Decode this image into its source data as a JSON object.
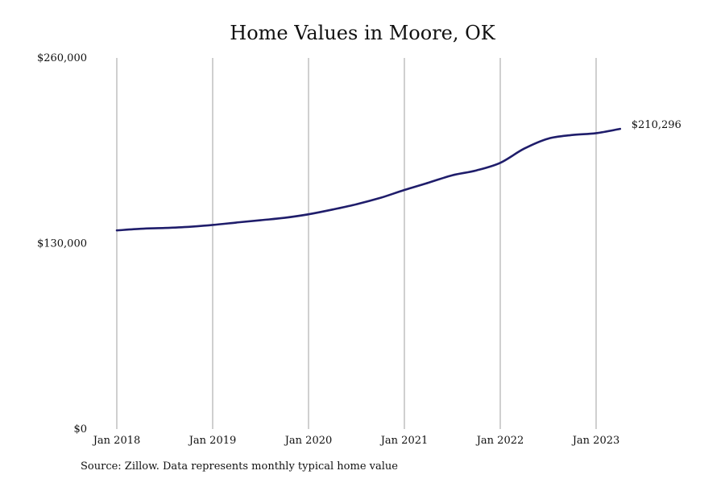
{
  "chart_data": {
    "type": "line",
    "title": "Home Values in Moore, OK",
    "xlabel": "",
    "ylabel": "",
    "ylim": [
      0,
      260000
    ],
    "y_ticks": [
      0,
      130000,
      260000
    ],
    "y_tick_labels": [
      "$0",
      "$130,000",
      "$260,000"
    ],
    "x_ticks": [
      "2018-01",
      "2019-01",
      "2020-01",
      "2021-01",
      "2022-01",
      "2023-01"
    ],
    "x_tick_labels": [
      "Jan 2018",
      "Jan 2019",
      "Jan 2020",
      "Jan 2021",
      "Jan 2022",
      "Jan 2023"
    ],
    "grid": "vertical",
    "legend": "none",
    "line_color": "#1f1d6b",
    "grid_color": "#888888",
    "end_label": "$210,296",
    "series": [
      {
        "x": [
          "2018-01",
          "2018-04",
          "2018-07",
          "2018-10",
          "2019-01",
          "2019-04",
          "2019-07",
          "2019-10",
          "2020-01",
          "2020-04",
          "2020-07",
          "2020-10",
          "2021-01",
          "2021-04",
          "2021-07",
          "2021-10",
          "2022-01",
          "2022-04",
          "2022-07",
          "2022-10",
          "2023-01",
          "2023-04"
        ],
        "values": [
          139200,
          140300,
          140900,
          141700,
          143000,
          144700,
          146300,
          148000,
          150500,
          153800,
          157500,
          162000,
          167500,
          172600,
          177800,
          181200,
          186500,
          196500,
          203500,
          206000,
          207300,
          210296
        ]
      }
    ]
  },
  "source": "Source: Zillow. Data represents monthly typical home value"
}
